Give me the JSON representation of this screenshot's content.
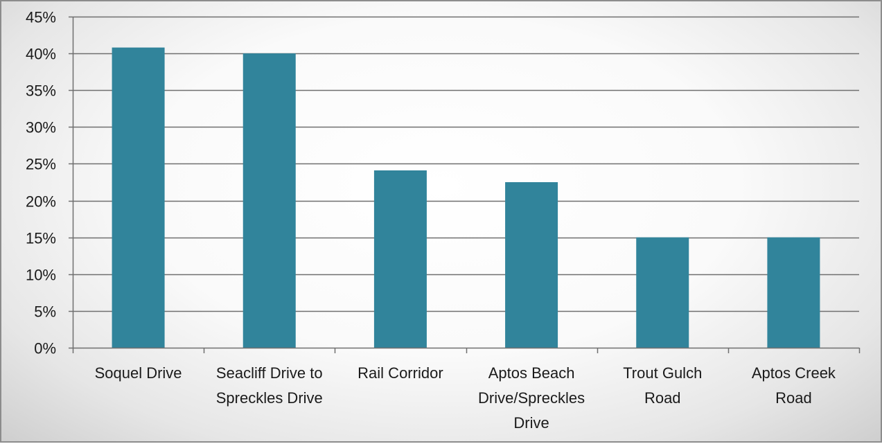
{
  "chart_data": {
    "type": "bar",
    "categories": [
      "Soquel Drive",
      "Seacliff Drive to Spreckles Drive",
      "Rail Corridor",
      "Aptos Beach Drive/Spreckles Drive",
      "Trout Gulch Road",
      "Aptos Creek Road"
    ],
    "category_label_lines": [
      [
        "Soquel Drive"
      ],
      [
        "Seacliff Drive to",
        "Spreckles Drive"
      ],
      [
        "Rail Corridor"
      ],
      [
        "Aptos Beach",
        "Drive/Spreckles",
        "Drive"
      ],
      [
        "Trout Gulch",
        "Road"
      ],
      [
        "Aptos Creek",
        "Road"
      ]
    ],
    "values": [
      0.408,
      0.4,
      0.241,
      0.225,
      0.15,
      0.15
    ],
    "ylim": [
      0,
      0.45
    ],
    "y_ticks": [
      0,
      0.05,
      0.1,
      0.15,
      0.2,
      0.25,
      0.3,
      0.35,
      0.4,
      0.45
    ],
    "y_tick_labels": [
      "0%",
      "5%",
      "10%",
      "15%",
      "20%",
      "25%",
      "30%",
      "35%",
      "40%",
      "45%"
    ],
    "bar_color": "#31849b",
    "grid": true,
    "legend": "none",
    "title": "",
    "xlabel": "",
    "ylabel": ""
  }
}
